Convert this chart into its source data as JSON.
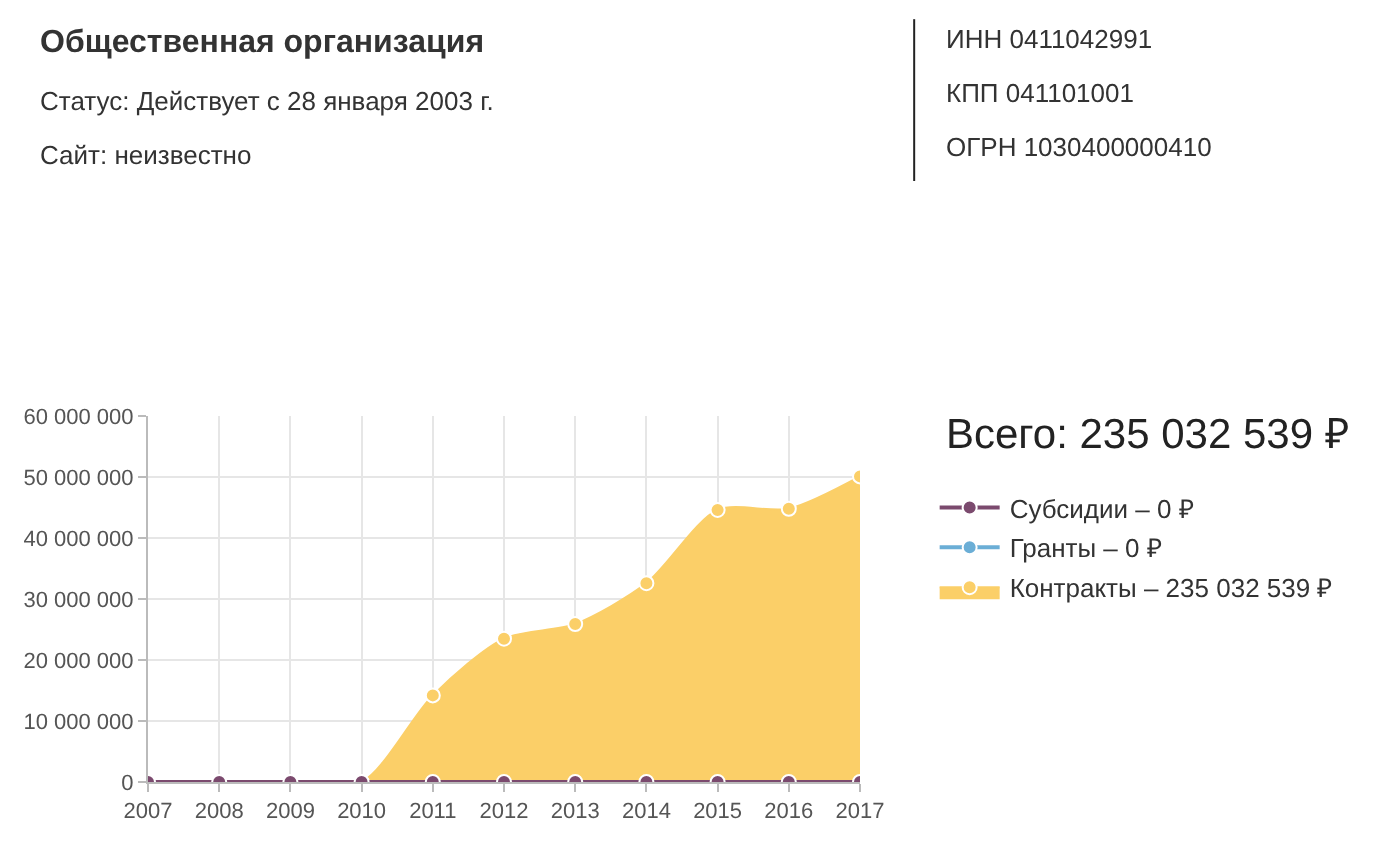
{
  "chart_data": {
    "type": "area",
    "title": "Всего: 235 032 539 ₽",
    "annotations": [
      "Общественная организация",
      "Статус: Действует с 28 января 2003 г.",
      "Сайт: неизвестно",
      "ИНН 0411042991",
      "КПП 041101001",
      "ОГРН 1030400000410"
    ],
    "x": [
      2007,
      2008,
      2009,
      2010,
      2011,
      2012,
      2013,
      2014,
      2015,
      2016,
      2017
    ],
    "series": [
      {
        "name": "Субсидии – 0 ₽",
        "color": "#7b4a6e",
        "type": "line",
        "values": [
          0,
          0,
          0,
          0,
          0,
          0,
          0,
          0,
          0,
          0,
          0
        ]
      },
      {
        "name": "Гранты – 0 ₽",
        "color": "#6baed6",
        "type": "line",
        "values": [
          null,
          null,
          null,
          null,
          null,
          null,
          null,
          null,
          null,
          null,
          null
        ]
      },
      {
        "name": "Контракты – 235 032 539 ₽",
        "color": "#fbcf68",
        "values": [
          0,
          0,
          0,
          0,
          14200000,
          23500000,
          25900000,
          32600000,
          44600000,
          44800000,
          50100000
        ]
      }
    ],
    "xlim": [
      2007,
      2017
    ],
    "xticks": [
      2007,
      2008,
      2009,
      2010,
      2011,
      2012,
      2013,
      2014,
      2015,
      2016,
      2017
    ],
    "ylim": [
      0,
      60000000
    ],
    "yticks": [
      {
        "value": 0,
        "label": "0"
      },
      {
        "value": 10000000,
        "label": "10 000 000"
      },
      {
        "value": 20000000,
        "label": "20 000 000"
      },
      {
        "value": 30000000,
        "label": "30 000 000"
      },
      {
        "value": 40000000,
        "label": "40 000 000"
      },
      {
        "value": 50000000,
        "label": "50 000 000"
      },
      {
        "value": 60000000,
        "label": "60 000 000"
      }
    ],
    "grid": true,
    "legend": "right",
    "marker": "circle",
    "line_style": "solid"
  }
}
